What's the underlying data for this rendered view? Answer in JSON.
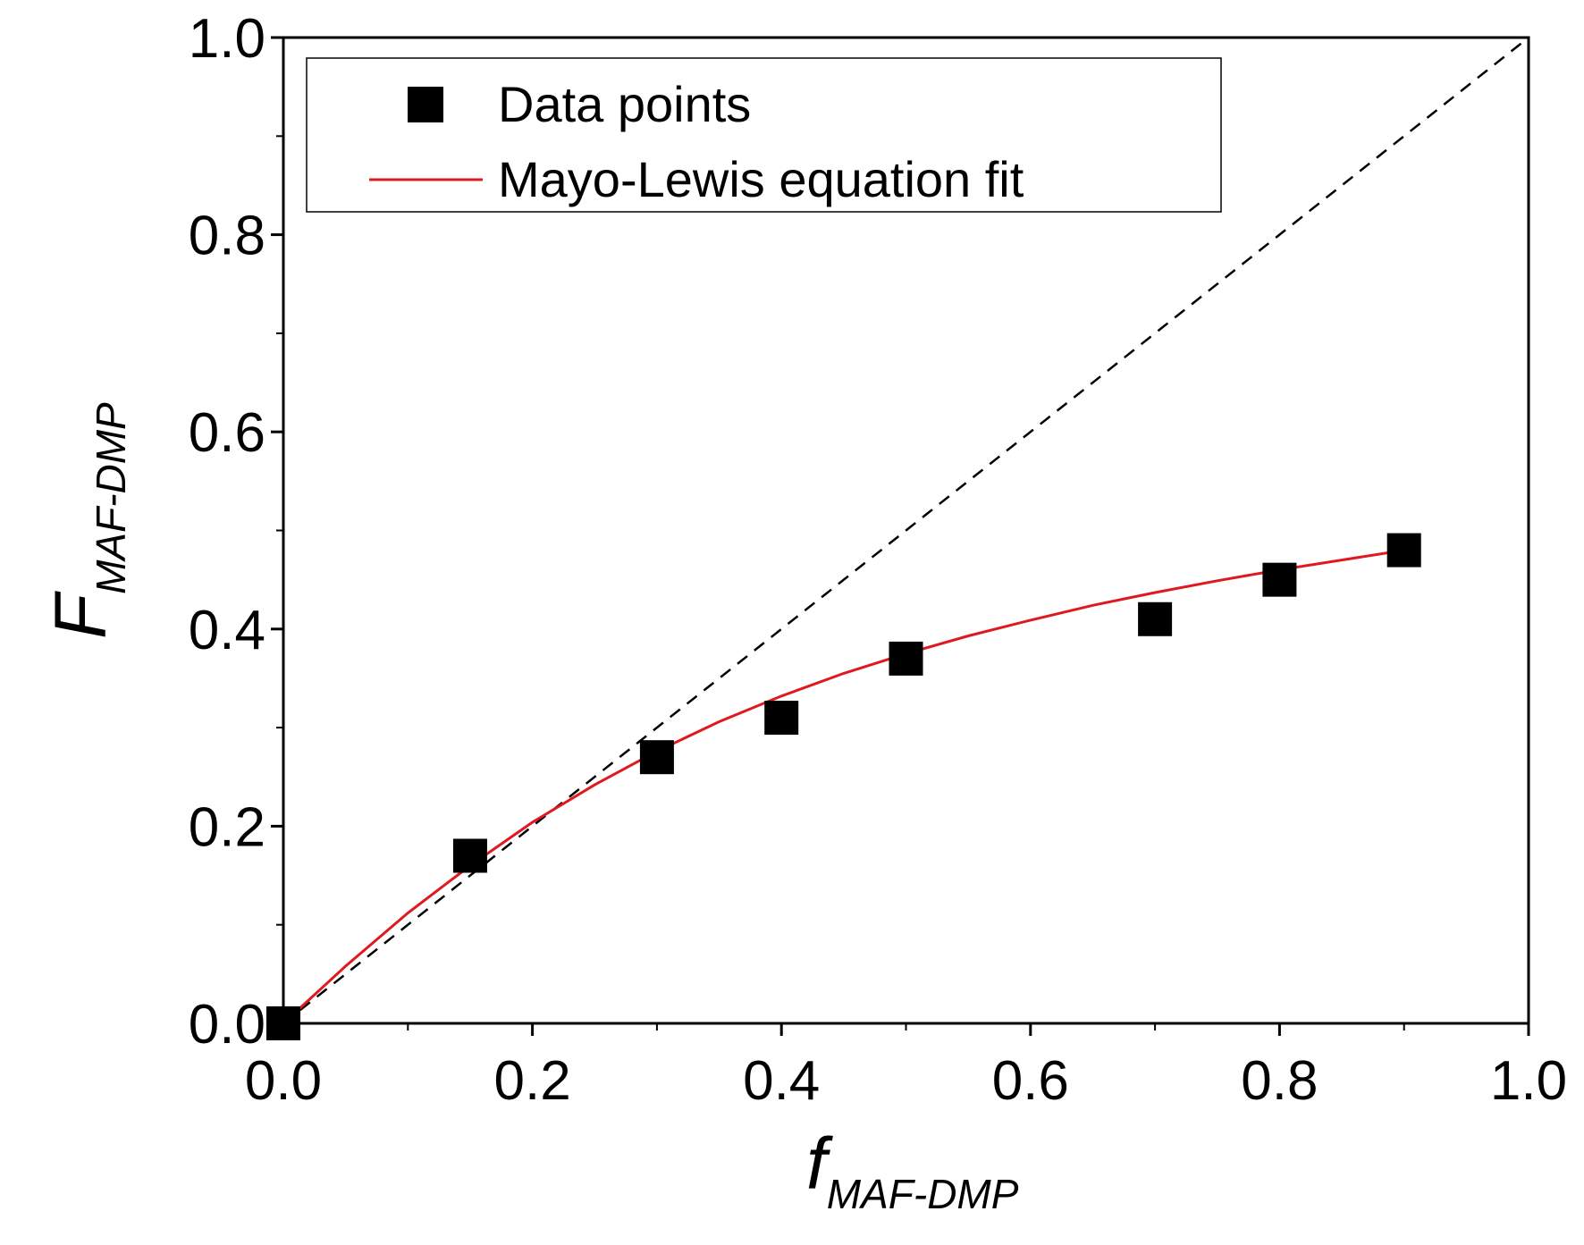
{
  "chart_data": {
    "type": "scatter",
    "xlabel": {
      "main": "f",
      "sub": "MAF-DMP"
    },
    "ylabel": {
      "main": "F",
      "sub": "MAF-DMP"
    },
    "xlim": [
      0.0,
      1.0
    ],
    "ylim": [
      0.0,
      1.0
    ],
    "xticks": [
      "0.0",
      "0.2",
      "0.4",
      "0.6",
      "0.8",
      "1.0"
    ],
    "yticks": [
      "0.0",
      "0.2",
      "0.4",
      "0.6",
      "0.8",
      "1.0"
    ],
    "grid": false,
    "legend_position": "top-left",
    "series": [
      {
        "name": "Data points",
        "kind": "markers",
        "marker": "square",
        "color": "#000000",
        "x": [
          0.0,
          0.15,
          0.3,
          0.4,
          0.5,
          0.7,
          0.8,
          0.9
        ],
        "y": [
          0.0,
          0.17,
          0.27,
          0.31,
          0.37,
          0.41,
          0.45,
          0.48
        ]
      },
      {
        "name": "Mayo-Lewis equation fit",
        "kind": "line",
        "color": "#e0191f",
        "x": [
          0.0,
          0.05,
          0.1,
          0.15,
          0.2,
          0.25,
          0.3,
          0.35,
          0.4,
          0.45,
          0.5,
          0.55,
          0.6,
          0.65,
          0.7,
          0.75,
          0.8,
          0.85,
          0.9
        ],
        "y": [
          0.0,
          0.058,
          0.112,
          0.16,
          0.204,
          0.242,
          0.276,
          0.306,
          0.332,
          0.355,
          0.375,
          0.393,
          0.409,
          0.424,
          0.437,
          0.449,
          0.46,
          0.47,
          0.48
        ]
      },
      {
        "kind": "reference-line",
        "style": "dashed",
        "color": "#000000",
        "x": [
          0.0,
          1.0
        ],
        "y": [
          0.0,
          1.0
        ]
      }
    ]
  }
}
